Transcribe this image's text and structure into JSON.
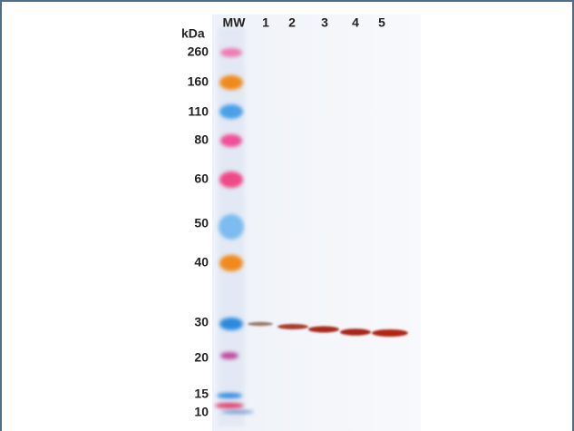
{
  "gel": {
    "unit_label": "kDa",
    "lanes": [
      "MW",
      "1",
      "2",
      "3",
      "4",
      "5"
    ],
    "markers": [
      "260",
      "160",
      "110",
      "80",
      "60",
      "50",
      "40",
      "30",
      "20",
      "15",
      "10"
    ]
  }
}
